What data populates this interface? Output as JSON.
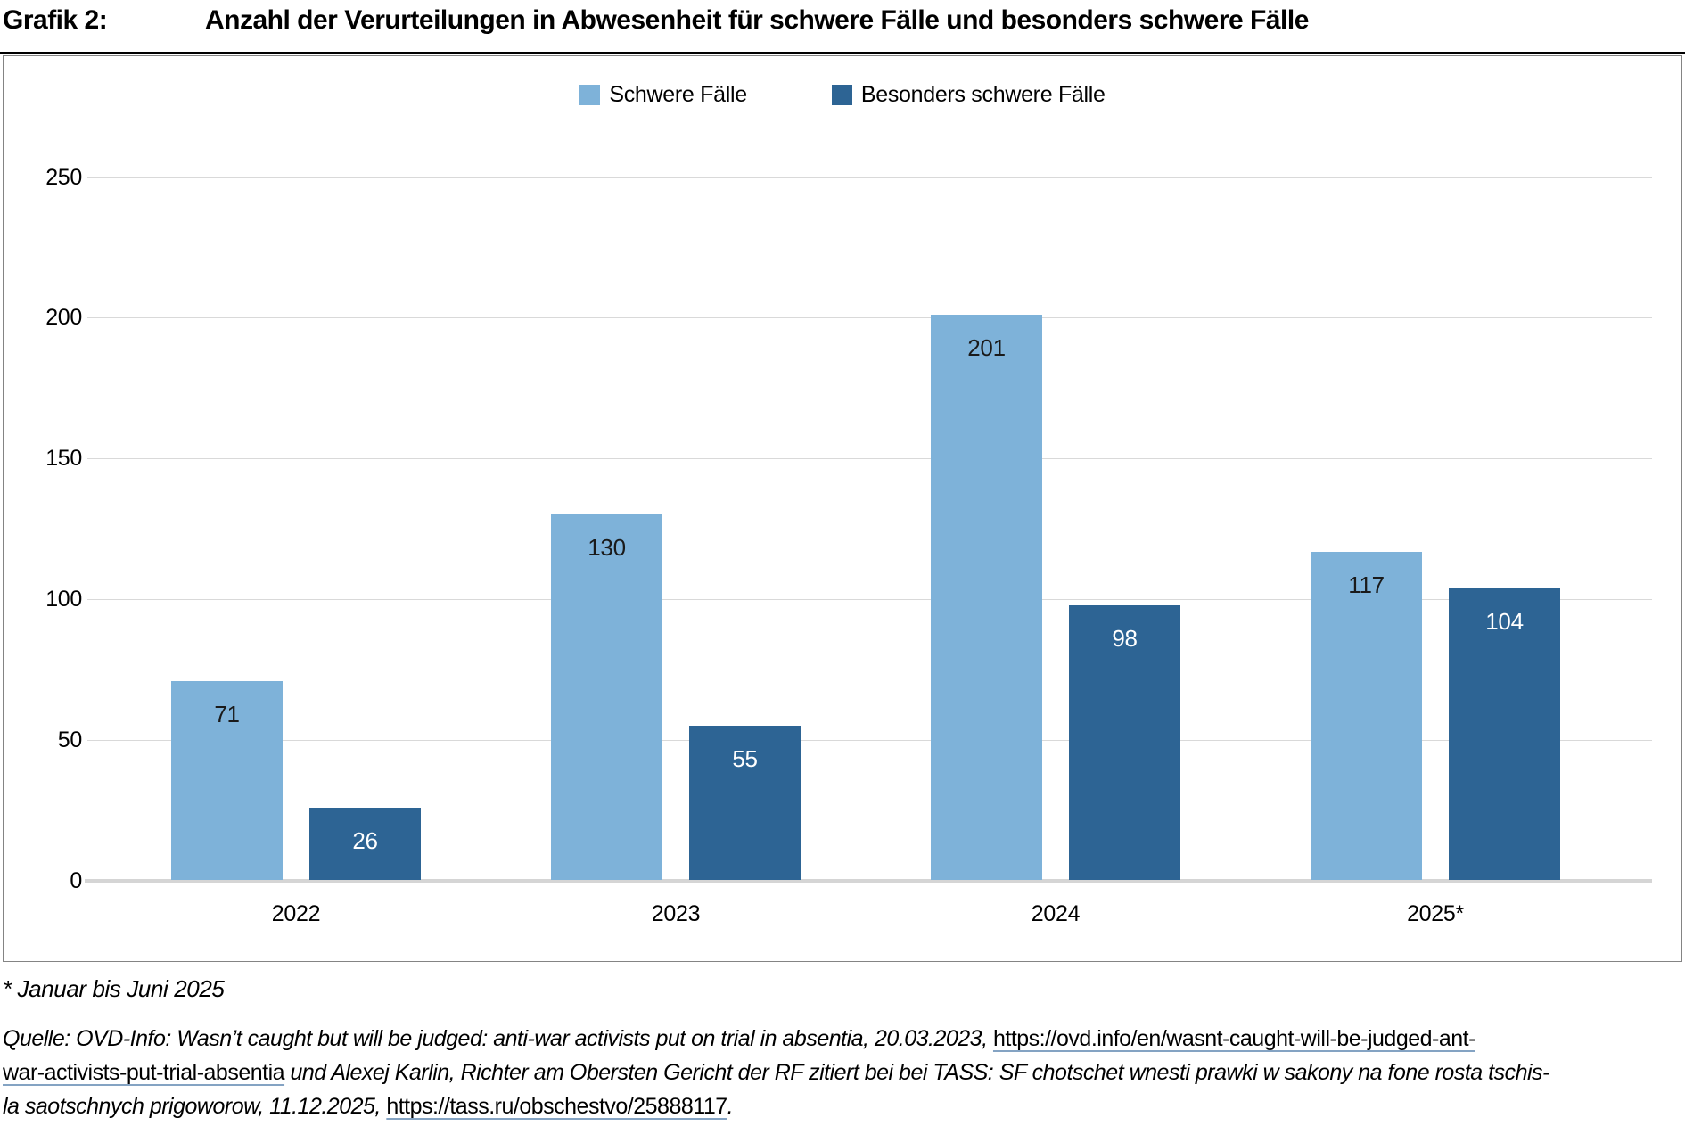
{
  "title": {
    "prefix": "Grafik 2:",
    "text": "Anzahl der Verurteilungen in Abwesenheit für schwere Fälle und besonders schwere Fälle"
  },
  "legend": {
    "items": [
      {
        "label": "Schwere Fälle",
        "color": "#7EB2D9"
      },
      {
        "label": "Besonders schwere Fälle",
        "color": "#2D6494"
      }
    ]
  },
  "chart_data": {
    "type": "bar",
    "categories": [
      "2022",
      "2023",
      "2024",
      "2025*"
    ],
    "series": [
      {
        "name": "Schwere Fälle",
        "color": "#7EB2D9",
        "label_color": "#1a1a1a",
        "values": [
          71,
          130,
          201,
          117
        ]
      },
      {
        "name": "Besonders schwere Fälle",
        "color": "#2D6494",
        "label_color": "#ffffff",
        "values": [
          26,
          55,
          98,
          104
        ]
      }
    ],
    "title": "Anzahl der Verurteilungen in Abwesenheit für schwere Fälle und besonders schwere Fälle",
    "xlabel": "",
    "ylabel": "",
    "yticks": [
      0,
      50,
      100,
      150,
      200,
      250
    ],
    "ylim": [
      0,
      250
    ],
    "grid": true,
    "legend_position": "top-center",
    "colors": {
      "gridline": "#d9d9d9",
      "baseline": "#d5d5d5",
      "chart_border": "#848484"
    }
  },
  "footnote": {
    "text": "* Januar bis Juni 2025"
  },
  "source": {
    "lines": [
      [
        {
          "style": "italic",
          "text": "Quelle: OVD-Info: Wasn’t caught but will be judged: anti-war activists put on trial in absentia, 20.03.2023, "
        },
        {
          "style": "url",
          "text": "https://ovd.info/en/wasnt-caught-will-be-judged-ant-"
        }
      ],
      [
        {
          "style": "url",
          "text": "war-activists-put-trial-absentia"
        },
        {
          "style": "italic",
          "text": " und Alexej Karlin, Richter am Obersten Gericht der RF zitiert bei bei TASS: SF chotschet wnesti prawki w sakony na fone rosta tschis-"
        }
      ],
      [
        {
          "style": "italic",
          "text": "la saotschnych prigoworow, 11.12.2025, "
        },
        {
          "style": "url",
          "text": "https://tass.ru/obschestvo/25888117"
        },
        {
          "style": "italic",
          "text": "."
        }
      ]
    ]
  }
}
